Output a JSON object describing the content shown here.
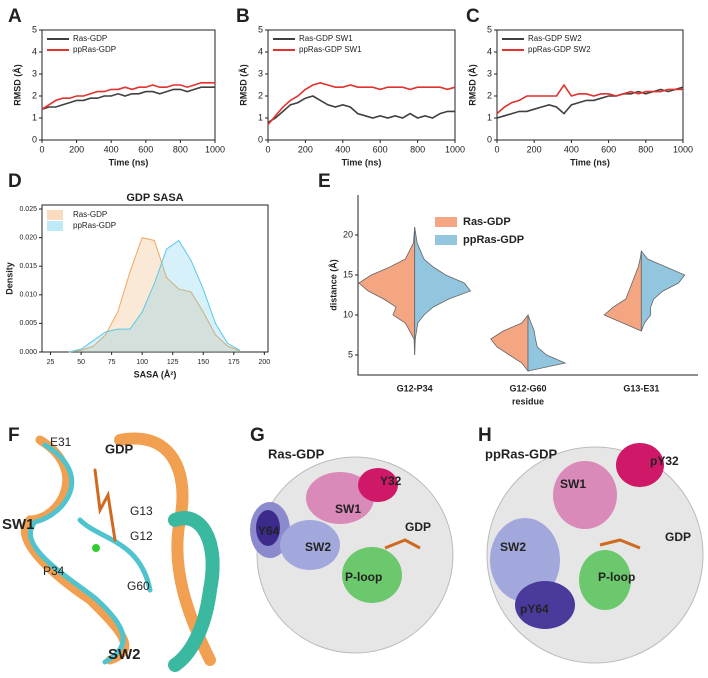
{
  "chart_data": [
    {
      "type": "line",
      "panel": "A",
      "xlabel": "Time (ns)",
      "ylabel": "RMSD (Å)",
      "xlim": [
        0,
        1000
      ],
      "ylim": [
        0,
        5
      ],
      "xticks": [
        0,
        200,
        400,
        600,
        800,
        1000
      ],
      "yticks": [
        0,
        1,
        2,
        3,
        4,
        5
      ],
      "x": [
        0,
        40,
        80,
        120,
        160,
        200,
        240,
        280,
        320,
        360,
        400,
        440,
        480,
        520,
        560,
        600,
        640,
        680,
        720,
        760,
        800,
        840,
        880,
        920,
        960,
        1000
      ],
      "series": [
        {
          "name": "Ras-GDP",
          "color": "#404040",
          "values": [
            1.4,
            1.5,
            1.5,
            1.6,
            1.7,
            1.8,
            1.8,
            1.9,
            1.9,
            2.0,
            2.0,
            2.1,
            2.0,
            2.1,
            2.1,
            2.2,
            2.2,
            2.1,
            2.2,
            2.3,
            2.3,
            2.2,
            2.3,
            2.4,
            2.4,
            2.4
          ]
        },
        {
          "name": "ppRas-GDP",
          "color": "#e0322f",
          "values": [
            1.4,
            1.6,
            1.8,
            1.9,
            1.9,
            2.0,
            2.0,
            2.1,
            2.2,
            2.2,
            2.3,
            2.3,
            2.4,
            2.3,
            2.4,
            2.4,
            2.5,
            2.4,
            2.4,
            2.5,
            2.5,
            2.4,
            2.5,
            2.6,
            2.6,
            2.6
          ]
        }
      ]
    },
    {
      "type": "line",
      "panel": "B",
      "xlabel": "Time (ns)",
      "ylabel": "RMSD (Å)",
      "xlim": [
        0,
        1000
      ],
      "ylim": [
        0,
        5
      ],
      "xticks": [
        0,
        200,
        400,
        600,
        800,
        1000
      ],
      "yticks": [
        0,
        1,
        2,
        3,
        4,
        5
      ],
      "x": [
        0,
        40,
        80,
        120,
        160,
        200,
        240,
        280,
        320,
        360,
        400,
        440,
        480,
        520,
        560,
        600,
        640,
        680,
        720,
        760,
        800,
        840,
        880,
        920,
        960,
        1000
      ],
      "series": [
        {
          "name": "Ras-GDP SW1",
          "color": "#404040",
          "values": [
            0.8,
            1.0,
            1.3,
            1.6,
            1.7,
            1.9,
            2.0,
            1.8,
            1.6,
            1.5,
            1.6,
            1.5,
            1.2,
            1.1,
            1.0,
            1.1,
            1.0,
            1.1,
            1.0,
            1.2,
            1.0,
            1.1,
            1.0,
            1.2,
            1.3,
            1.3
          ]
        },
        {
          "name": "ppRas-GDP SW1",
          "color": "#e0322f",
          "values": [
            0.7,
            1.1,
            1.5,
            1.8,
            2.0,
            2.3,
            2.5,
            2.6,
            2.5,
            2.4,
            2.4,
            2.5,
            2.4,
            2.4,
            2.4,
            2.3,
            2.4,
            2.4,
            2.4,
            2.3,
            2.4,
            2.4,
            2.4,
            2.4,
            2.3,
            2.4
          ]
        }
      ]
    },
    {
      "type": "line",
      "panel": "C",
      "xlabel": "Time (ns)",
      "ylabel": "RMSD (Å)",
      "xlim": [
        0,
        1000
      ],
      "ylim": [
        0,
        5
      ],
      "xticks": [
        0,
        200,
        400,
        600,
        800,
        1000
      ],
      "yticks": [
        0,
        1,
        2,
        3,
        4,
        5
      ],
      "x": [
        0,
        40,
        80,
        120,
        160,
        200,
        240,
        280,
        320,
        360,
        400,
        440,
        480,
        520,
        560,
        600,
        640,
        680,
        720,
        760,
        800,
        840,
        880,
        920,
        960,
        1000
      ],
      "series": [
        {
          "name": "Ras-GDP SW2",
          "color": "#404040",
          "values": [
            1.0,
            1.1,
            1.2,
            1.3,
            1.3,
            1.4,
            1.5,
            1.6,
            1.5,
            1.2,
            1.6,
            1.7,
            1.8,
            1.8,
            1.9,
            2.0,
            2.0,
            2.1,
            2.1,
            2.2,
            2.1,
            2.2,
            2.3,
            2.2,
            2.3,
            2.4
          ]
        },
        {
          "name": "ppRas-GDP SW2",
          "color": "#e0322f",
          "values": [
            1.2,
            1.5,
            1.7,
            1.8,
            2.0,
            2.0,
            2.0,
            2.0,
            2.0,
            2.5,
            2.0,
            2.1,
            2.1,
            2.0,
            2.1,
            2.1,
            2.0,
            2.1,
            2.2,
            2.1,
            2.2,
            2.2,
            2.2,
            2.3,
            2.3,
            2.3
          ]
        }
      ]
    },
    {
      "type": "area",
      "panel": "D",
      "title": "GDP SASA",
      "xlabel": "SASA (Å²)",
      "ylabel": "Density",
      "xlim": [
        18,
        203
      ],
      "ylim": [
        0,
        0.0257
      ],
      "xticks": [
        25,
        50,
        75,
        100,
        125,
        150,
        175,
        200
      ],
      "yticks": [
        {
          "value": 0,
          "label": "0.000"
        },
        {
          "value": 0.005,
          "label": "0.005"
        },
        {
          "value": 0.01,
          "label": "0.010"
        },
        {
          "value": 0.015,
          "label": "0.015"
        },
        {
          "value": 0.02,
          "label": "0.020"
        },
        {
          "value": 0.025,
          "label": "0.025"
        }
      ],
      "x": [
        40,
        50,
        60,
        70,
        80,
        90,
        100,
        110,
        120,
        130,
        140,
        150,
        160,
        170,
        180
      ],
      "series": [
        {
          "name": "Ras-GDP",
          "color": "#f0a860",
          "values": [
            0,
            0.0003,
            0.001,
            0.003,
            0.007,
            0.014,
            0.02,
            0.0195,
            0.013,
            0.011,
            0.0105,
            0.007,
            0.003,
            0.001,
            0.0002
          ]
        },
        {
          "name": "ppRas-GDP",
          "color": "#5cc8e8",
          "values": [
            0,
            0.0005,
            0.002,
            0.0035,
            0.004,
            0.004,
            0.007,
            0.012,
            0.018,
            0.0195,
            0.016,
            0.011,
            0.005,
            0.0015,
            0.0003
          ]
        }
      ]
    },
    {
      "type": "violin",
      "panel": "E",
      "xlabel": "residue",
      "ylabel": "distance (Å)",
      "ylim": [
        2.5,
        25
      ],
      "yticks": [
        5,
        10,
        15,
        20
      ],
      "categories": [
        "G12-P34",
        "G12-G60",
        "G13-E31"
      ],
      "grid": [
        [
          5,
          7,
          9,
          10,
          11,
          12,
          13,
          14,
          15,
          16,
          17,
          19,
          21
        ],
        [
          3,
          4,
          5,
          6,
          7,
          8,
          9,
          10
        ],
        [
          8,
          9,
          10,
          11,
          12,
          13,
          14,
          15,
          16,
          17,
          18
        ]
      ],
      "series": [
        {
          "name": "Ras-GDP",
          "color": "#f4a582",
          "density": [
            [
              0,
              0.01,
              0.15,
              0.35,
              0.3,
              0.5,
              0.75,
              0.9,
              0.7,
              0.4,
              0.15,
              0.02,
              0
            ],
            [
              0,
              0.1,
              0.3,
              0.5,
              0.6,
              0.4,
              0.1,
              0
            ],
            [
              0,
              0.3,
              0.6,
              0.45,
              0.25,
              0.2,
              0.15,
              0.1,
              0.05,
              0.02,
              0
            ]
          ]
        },
        {
          "name": "ppRas-GDP",
          "color": "#92c5de",
          "density": [
            [
              0,
              0.01,
              0.05,
              0.15,
              0.3,
              0.55,
              0.9,
              0.8,
              0.5,
              0.3,
              0.15,
              0.04,
              0
            ],
            [
              0,
              0.6,
              0.3,
              0.15,
              0.12,
              0.1,
              0.05,
              0
            ],
            [
              0,
              0.05,
              0.15,
              0.15,
              0.2,
              0.35,
              0.6,
              0.7,
              0.4,
              0.1,
              0
            ]
          ]
        }
      ]
    }
  ],
  "structures": [
    {
      "panel": "F",
      "labels": [
        "E31",
        "GDP",
        "SW1",
        "G13",
        "G12",
        "P34",
        "G60",
        "SW2"
      ]
    },
    {
      "panel": "G",
      "title": "Ras-GDP",
      "labels": [
        "Y32",
        "SW1",
        "Y64",
        "SW2",
        "GDP",
        "P-loop"
      ]
    },
    {
      "panel": "H",
      "title": "ppRas-GDP",
      "labels": [
        "pY32",
        "SW1",
        "SW2",
        "GDP",
        "P-loop",
        "pY64"
      ]
    }
  ]
}
